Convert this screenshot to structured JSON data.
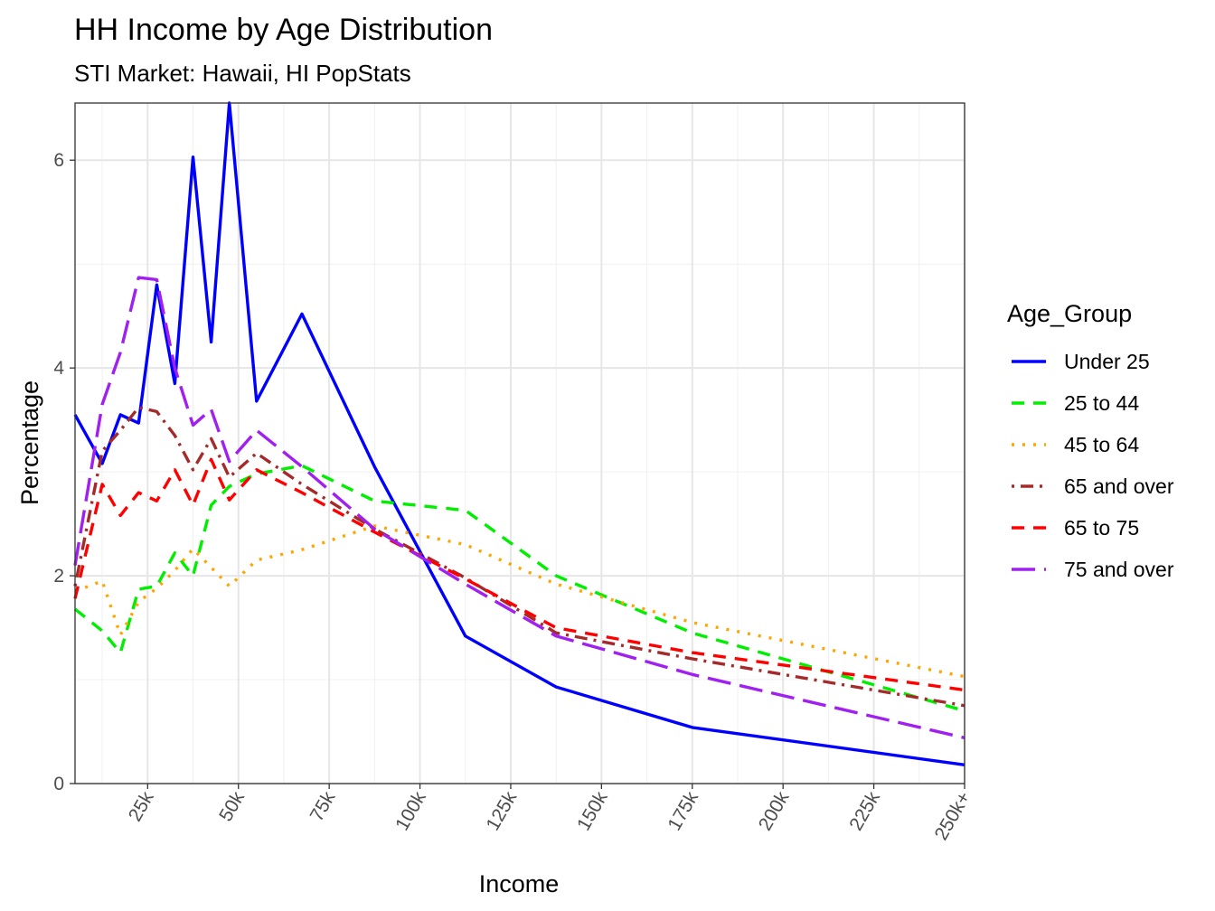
{
  "chart_data": {
    "type": "line",
    "title": "HH Income by Age Distribution",
    "subtitle": "STI Market: Hawaii, HI PopStats",
    "xlabel": "Income",
    "ylabel": "Percentage",
    "xlim": [
      5000,
      250000
    ],
    "ylim": [
      0,
      6.55
    ],
    "x_ticks": [
      {
        "value": 25000,
        "label": "25k"
      },
      {
        "value": 50000,
        "label": "50k"
      },
      {
        "value": 75000,
        "label": "75k"
      },
      {
        "value": 100000,
        "label": "100k"
      },
      {
        "value": 125000,
        "label": "125k"
      },
      {
        "value": 150000,
        "label": "150k"
      },
      {
        "value": 175000,
        "label": "175k"
      },
      {
        "value": 200000,
        "label": "200k"
      },
      {
        "value": 225000,
        "label": "225k"
      },
      {
        "value": 250000,
        "label": "250k+"
      }
    ],
    "y_ticks": [
      {
        "value": 0,
        "label": "0"
      },
      {
        "value": 2,
        "label": "2"
      },
      {
        "value": 4,
        "label": "4"
      },
      {
        "value": 6,
        "label": "6"
      }
    ],
    "grid": true,
    "legend": {
      "title": "Age_Group",
      "position": "right"
    },
    "x": [
      5000,
      12500,
      17500,
      22500,
      27500,
      32500,
      37500,
      42500,
      47500,
      55000,
      67500,
      87500,
      112500,
      137500,
      175000,
      250000
    ],
    "series": [
      {
        "name": "Under 25",
        "color": "#0000ff",
        "dash": "solid",
        "values": [
          3.55,
          3.08,
          3.55,
          3.47,
          4.8,
          3.85,
          6.03,
          4.25,
          6.55,
          3.68,
          4.52,
          3.05,
          1.42,
          0.93,
          0.54,
          0.18
        ]
      },
      {
        "name": "25 to 44",
        "color": "#00ee00",
        "dash": "dashed",
        "values": [
          1.68,
          1.47,
          1.26,
          1.87,
          1.9,
          2.22,
          2.0,
          2.68,
          2.86,
          2.98,
          3.06,
          2.72,
          2.63,
          2.0,
          1.45,
          0.7
        ]
      },
      {
        "name": "45 to 64",
        "color": "#ffa500",
        "dash": "dotted",
        "values": [
          1.85,
          1.95,
          1.43,
          1.75,
          1.88,
          2.05,
          2.26,
          2.08,
          1.9,
          2.15,
          2.25,
          2.48,
          2.3,
          1.92,
          1.55,
          1.03
        ]
      },
      {
        "name": "65 and over",
        "color": "#a52a2a",
        "dash": "dotdash",
        "values": [
          1.9,
          3.2,
          3.4,
          3.62,
          3.58,
          3.35,
          3.02,
          3.32,
          2.95,
          3.18,
          2.88,
          2.45,
          1.98,
          1.45,
          1.2,
          0.75
        ]
      },
      {
        "name": "65 to 75",
        "color": "#ff0000",
        "dash": "dashed",
        "values": [
          1.78,
          2.88,
          2.58,
          2.8,
          2.72,
          3.02,
          2.68,
          3.12,
          2.73,
          3.02,
          2.8,
          2.42,
          1.97,
          1.5,
          1.26,
          0.9
        ]
      },
      {
        "name": "75 and over",
        "color": "#a020f0",
        "dash": "longdash",
        "values": [
          2.1,
          3.65,
          4.15,
          4.87,
          4.85,
          4.0,
          3.45,
          3.6,
          3.1,
          3.4,
          3.05,
          2.45,
          1.92,
          1.42,
          1.05,
          0.44
        ]
      }
    ]
  }
}
